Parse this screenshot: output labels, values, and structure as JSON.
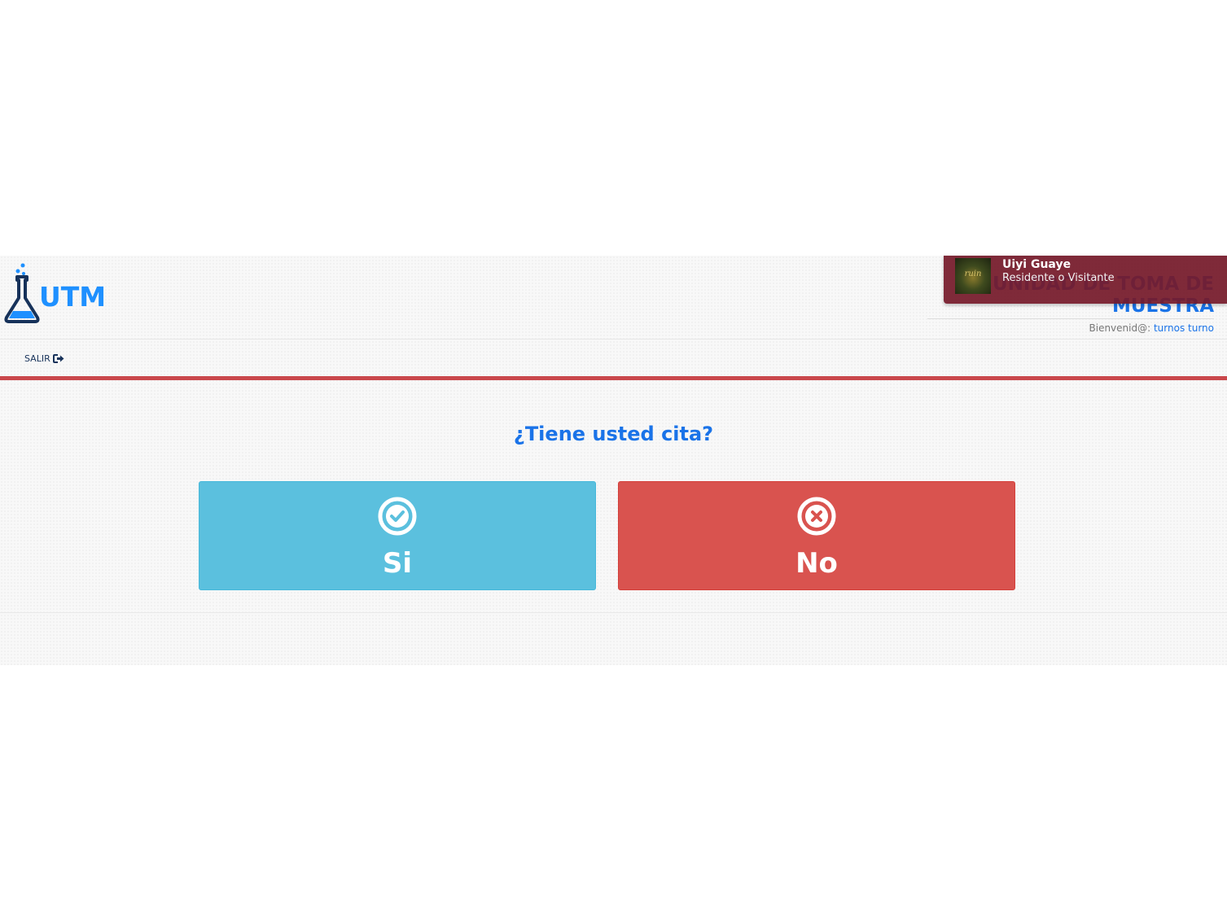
{
  "brand": {
    "logo_text": "UTM",
    "unit_title": "UNIDAD DE TOMA DE MUESTRA"
  },
  "welcome": {
    "label": "Bienvenid@:",
    "user": "turnos turno"
  },
  "notification": {
    "title": "Uiyi Guaye",
    "subtitle": "Residente o Visitante",
    "thumb_text": "ruin"
  },
  "nav": {
    "logout_label": "SALIR",
    "logout_icon": "sign-out-icon"
  },
  "question": "¿Tiene usted cita?",
  "choices": {
    "yes": {
      "label": "Si",
      "icon": "check-circle-icon",
      "color": "#5bc0de"
    },
    "no": {
      "label": "No",
      "icon": "times-circle-icon",
      "color": "#d9534f"
    }
  },
  "colors": {
    "accent": "#1a73e8",
    "nav_border": "#c9474b",
    "notification_bg": "#751a2a"
  }
}
